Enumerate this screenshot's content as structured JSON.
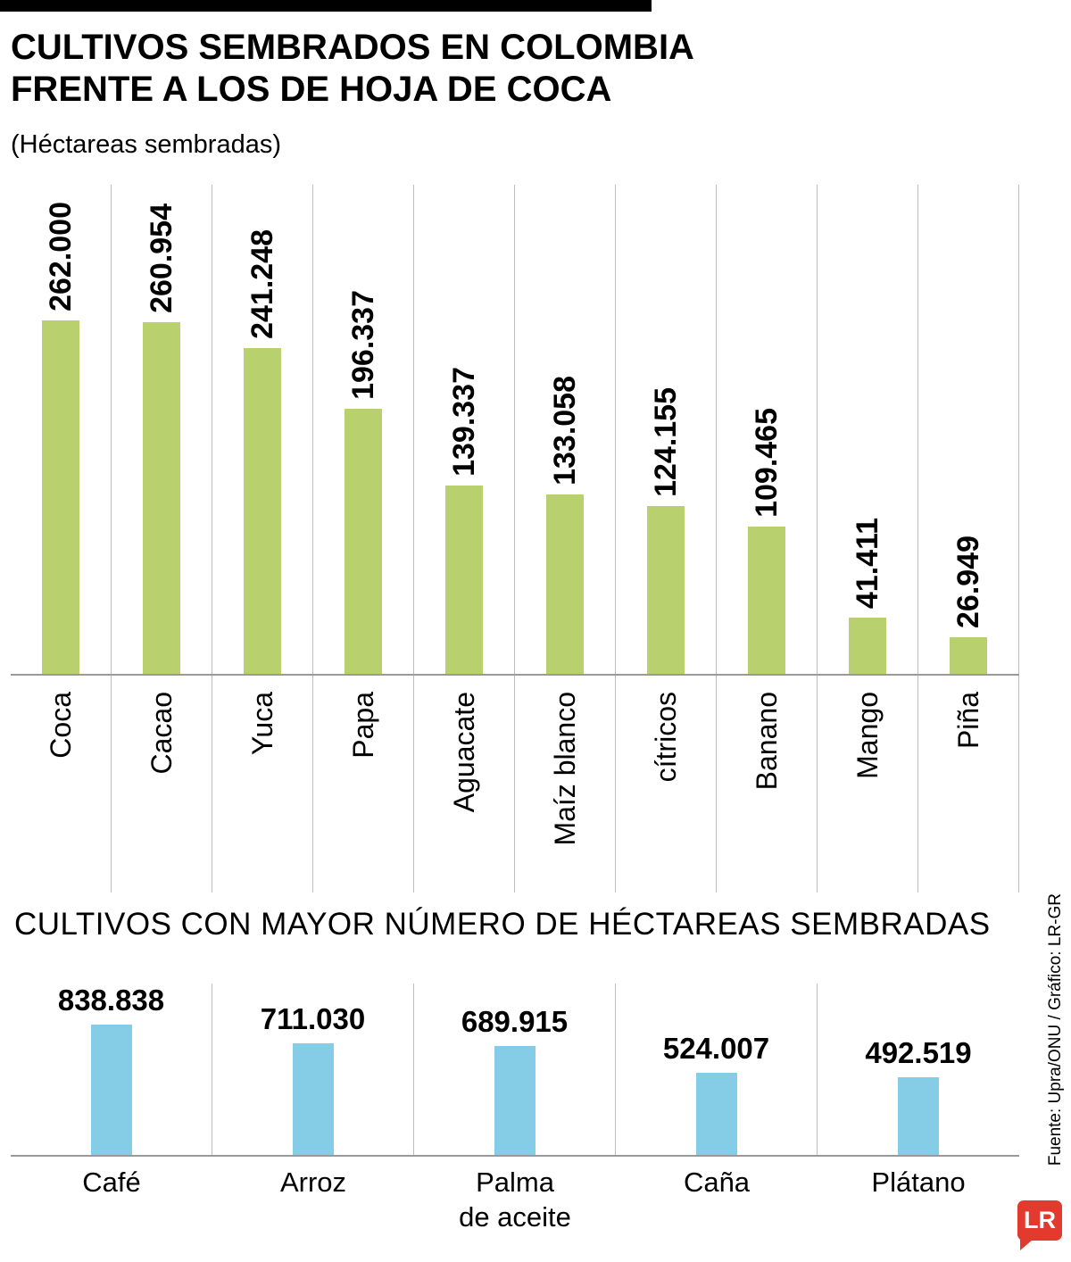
{
  "header": {
    "title_line1": "CULTIVOS SEMBRADOS EN COLOMBIA",
    "title_line2": "FRENTE A LOS DE HOJA DE COCA",
    "subtitle": "(Héctareas sembradas)"
  },
  "sections": {
    "bottom_title": "CULTIVOS CON MAYOR NÚMERO DE HÉCTAREAS SEMBRADAS"
  },
  "source": {
    "credit": "Fuente: Upra/ONU / Gráfico: LR-GR"
  },
  "logo": {
    "text": "LR",
    "color": "#e23a2e"
  },
  "chart_data": [
    {
      "type": "bar",
      "title": "Cultivos sembrados en Colombia frente a los de hoja de coca",
      "ylabel": "Héctareas sembradas",
      "categories": [
        "Coca",
        "Cacao",
        "Yuca",
        "Papa",
        "Aguacate",
        "Maíz blanco",
        "cítricos",
        "Banano",
        "Mango",
        "Piña"
      ],
      "values": [
        262000,
        260954,
        241248,
        196337,
        139337,
        133058,
        124155,
        109465,
        41411,
        26949
      ],
      "value_labels": [
        "262.000",
        "260.954",
        "241.248",
        "196.337",
        "139.337",
        "133.058",
        "124.155",
        "109.465",
        "41.411",
        "26.949"
      ],
      "bar_color": "#b8d16e",
      "ylim": [
        0,
        262000
      ],
      "grid": "vertical-separators",
      "label_rotation": 90
    },
    {
      "type": "bar",
      "title": "Cultivos con mayor número de héctareas sembradas",
      "ylabel": "Héctareas sembradas",
      "categories": [
        "Café",
        "Arroz",
        "Palma de aceite",
        "Caña",
        "Plátano"
      ],
      "display_labels": [
        "Café",
        "Arroz",
        "Palma\nde aceite",
        "Caña",
        "Plátano"
      ],
      "values": [
        838838,
        711030,
        689915,
        524007,
        492519
      ],
      "value_labels": [
        "838.838",
        "711.030",
        "689.915",
        "524.007",
        "492.519"
      ],
      "bar_color": "#85cde6",
      "ylim": [
        0,
        838838
      ],
      "grid": "vertical-separators",
      "label_rotation": 0
    }
  ]
}
